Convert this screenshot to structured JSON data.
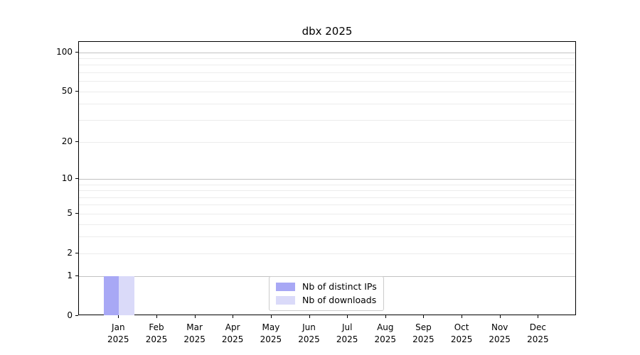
{
  "figure": {
    "background": "#ffffff"
  },
  "chart_data": {
    "type": "bar",
    "title": "dbx 2025",
    "x_categories": [
      "Jan",
      "Feb",
      "Mar",
      "Apr",
      "May",
      "Jun",
      "Jul",
      "Aug",
      "Sep",
      "Oct",
      "Nov",
      "Dec"
    ],
    "x_year": "2025",
    "series": [
      {
        "name": "Nb of distinct IPs",
        "color": "#a8a8f5",
        "values": [
          1,
          0,
          0,
          0,
          0,
          0,
          0,
          0,
          0,
          0,
          0,
          0
        ]
      },
      {
        "name": "Nb of downloads",
        "color": "#dadaf9",
        "values": [
          1,
          0,
          0,
          0,
          0,
          0,
          0,
          0,
          0,
          0,
          0,
          0
        ]
      }
    ],
    "yscale": "log1p",
    "ylim": [
      0,
      120
    ],
    "ytick_values": [
      0,
      1,
      2,
      5,
      10,
      20,
      50,
      100
    ],
    "major_gridlines": [
      1,
      10,
      100
    ],
    "minor_gridlines": [
      2,
      3,
      4,
      5,
      6,
      7,
      8,
      9,
      20,
      30,
      40,
      50,
      60,
      70,
      80,
      90
    ],
    "grid": true,
    "legend_position": "lower center",
    "bar_width_units": 0.4
  },
  "colors": {
    "major_grid": "#c2c2c2",
    "minor_grid": "#ececec",
    "spine": "#000000",
    "text": "#000000",
    "legend_border": "#cccccc"
  }
}
